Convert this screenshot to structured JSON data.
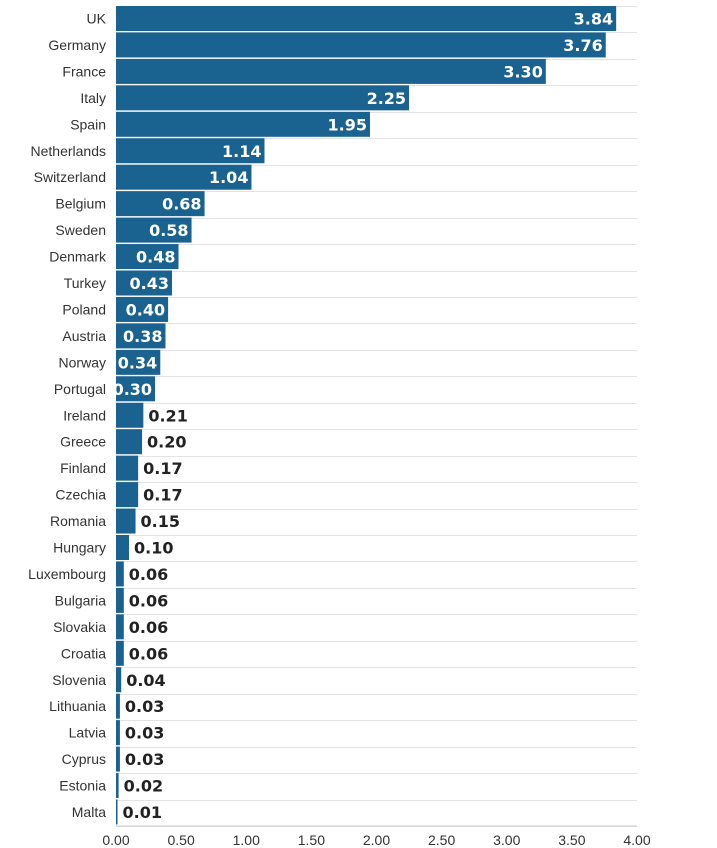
{
  "chart_data": {
    "type": "bar",
    "orientation": "horizontal",
    "categories": [
      "UK",
      "Germany",
      "France",
      "Italy",
      "Spain",
      "Netherlands",
      "Switzerland",
      "Belgium",
      "Sweden",
      "Denmark",
      "Turkey",
      "Poland",
      "Austria",
      "Norway",
      "Portugal",
      "Ireland",
      "Greece",
      "Finland",
      "Czechia",
      "Romania",
      "Hungary",
      "Luxembourg",
      "Bulgaria",
      "Slovakia",
      "Croatia",
      "Slovenia",
      "Lithuania",
      "Latvia",
      "Cyprus",
      "Estonia",
      "Malta"
    ],
    "values": [
      3.84,
      3.76,
      3.3,
      2.25,
      1.95,
      1.14,
      1.04,
      0.68,
      0.58,
      0.48,
      0.43,
      0.4,
      0.38,
      0.34,
      0.3,
      0.21,
      0.2,
      0.17,
      0.17,
      0.15,
      0.1,
      0.06,
      0.06,
      0.06,
      0.06,
      0.04,
      0.03,
      0.03,
      0.03,
      0.02,
      0.01
    ],
    "value_labels": [
      "3.84",
      "3.76",
      "3.30",
      "2.25",
      "1.95",
      "1.14",
      "1.04",
      "0.68",
      "0.58",
      "0.48",
      "0.43",
      "0.40",
      "0.38",
      "0.34",
      "0.30",
      "0.21",
      "0.20",
      "0.17",
      "0.17",
      "0.15",
      "0.10",
      "0.06",
      "0.06",
      "0.06",
      "0.06",
      "0.04",
      "0.03",
      "0.03",
      "0.03",
      "0.02",
      "0.01"
    ],
    "x_ticks": [
      "0.00",
      "0.50",
      "1.00",
      "1.50",
      "2.00",
      "2.50",
      "3.00",
      "3.50",
      "4.00"
    ],
    "xlim": [
      0,
      4
    ],
    "title": "",
    "xlabel": "",
    "ylabel": "",
    "grid": true,
    "colors": {
      "bar": "#1a628f",
      "inside_label": "#ffffff",
      "outside_label": "#222222"
    }
  }
}
